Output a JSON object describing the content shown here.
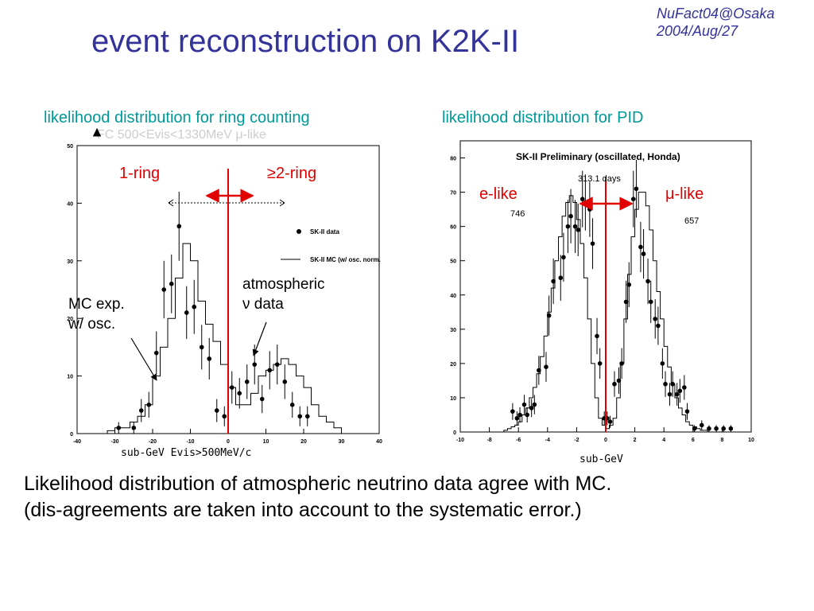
{
  "slide": {
    "title": "event reconstruction on K2K-II",
    "conference": "NuFact04@Osaka",
    "date": "2004/Aug/27"
  },
  "left_panel": {
    "heading": "likelihood distribution for ring counting",
    "faded_header": "FC 500<Evis<1330MeV μ-like",
    "one_ring_label": "1-ring",
    "multi_ring_label": "≥2-ring",
    "mc_annotation_line1": "MC exp.",
    "mc_annotation_line2": "w/ osc.",
    "data_annotation_line1": "atmospheric",
    "data_annotation_line2": "ν data",
    "caption": "sub-GeV  Evis>500MeV/c"
  },
  "right_panel": {
    "heading": "likelihood distribution for PID",
    "e_like_label": "e-like",
    "mu_like_label": "μ-like",
    "caption": "sub-GeV"
  },
  "summary": {
    "line1": "Likelihood distribution of atmospheric neutrino data agree with MC.",
    "line2": "(dis-agreements are taken into account to the systematic error.)"
  },
  "colors": {
    "title": "#333399",
    "heading": "#009999",
    "annotation_red": "#e00000",
    "cut_line": "#e00000"
  },
  "chart_data": [
    {
      "type": "scatter",
      "xlim": [
        -40,
        40
      ],
      "ylim": [
        0,
        50
      ],
      "xticks": [
        -40,
        -30,
        -20,
        -10,
        0,
        10,
        20,
        30,
        40
      ],
      "yticks": [
        0,
        10,
        20,
        30,
        40,
        50
      ],
      "cut": 0,
      "legend_position": "top-right",
      "legend": [
        "SK-II data",
        "SK-II MC (w/ osc. norm."
      ],
      "mc_histogram": {
        "bin_width": 2,
        "x_start": -32,
        "values": [
          0.5,
          1,
          1,
          2,
          3,
          5,
          10,
          15,
          20,
          27,
          33,
          30,
          23,
          19,
          16,
          12,
          8,
          5,
          5,
          7,
          10,
          11,
          12,
          13,
          12,
          10,
          8,
          5,
          3,
          2,
          1,
          0
        ]
      },
      "data_points": [
        {
          "x": -29,
          "y": 1
        },
        {
          "x": -25,
          "y": 1
        },
        {
          "x": -23,
          "y": 4
        },
        {
          "x": -21,
          "y": 5
        },
        {
          "x": -19,
          "y": 14
        },
        {
          "x": -17,
          "y": 25
        },
        {
          "x": -15,
          "y": 26
        },
        {
          "x": -13,
          "y": 36
        },
        {
          "x": -11,
          "y": 21
        },
        {
          "x": -9,
          "y": 22
        },
        {
          "x": -7,
          "y": 15
        },
        {
          "x": -5,
          "y": 13
        },
        {
          "x": -3,
          "y": 4
        },
        {
          "x": -1,
          "y": 3
        },
        {
          "x": 1,
          "y": 8
        },
        {
          "x": 3,
          "y": 7
        },
        {
          "x": 5,
          "y": 9
        },
        {
          "x": 7,
          "y": 12
        },
        {
          "x": 9,
          "y": 6
        },
        {
          "x": 11,
          "y": 11
        },
        {
          "x": 13,
          "y": 12
        },
        {
          "x": 15,
          "y": 9
        },
        {
          "x": 17,
          "y": 5
        },
        {
          "x": 19,
          "y": 3
        },
        {
          "x": 21,
          "y": 3
        }
      ]
    },
    {
      "type": "scatter",
      "title": "SK-II Preliminary (oscillated, Honda)",
      "exposure": "313.1 days",
      "left_count": "746",
      "right_count": "657",
      "xlim": [
        -10,
        10
      ],
      "ylim": [
        0,
        85
      ],
      "xticks": [
        -10,
        -8,
        -6,
        -4,
        -2,
        0,
        2,
        4,
        6,
        8,
        10
      ],
      "yticks": [
        0,
        10,
        20,
        30,
        40,
        50,
        60,
        70,
        80
      ],
      "cut": 0,
      "mc_histogram": {
        "bin_width": 0.25,
        "x_start": -7,
        "values": [
          0.5,
          1,
          1.5,
          2,
          3,
          5,
          7,
          10,
          13,
          17,
          22,
          28,
          35,
          42,
          50,
          57,
          63,
          67,
          69,
          67,
          62,
          55,
          45,
          33,
          20,
          10,
          4,
          2,
          1,
          2,
          4,
          10,
          20,
          33,
          46,
          57,
          65,
          70,
          70,
          66,
          59,
          50,
          41,
          33,
          25,
          19,
          14,
          10,
          7,
          5,
          3,
          2,
          1.5,
          1,
          0.5,
          0.5,
          0
        ]
      },
      "data_points": [
        {
          "x": -6.4,
          "y": 6
        },
        {
          "x": -6.1,
          "y": 4
        },
        {
          "x": -5.9,
          "y": 5
        },
        {
          "x": -5.6,
          "y": 8
        },
        {
          "x": -5.4,
          "y": 5
        },
        {
          "x": -5.1,
          "y": 7
        },
        {
          "x": -4.9,
          "y": 8
        },
        {
          "x": -4.6,
          "y": 18
        },
        {
          "x": -4.1,
          "y": 19
        },
        {
          "x": -3.9,
          "y": 34
        },
        {
          "x": -3.6,
          "y": 44
        },
        {
          "x": -3.1,
          "y": 45
        },
        {
          "x": -2.9,
          "y": 51
        },
        {
          "x": -2.6,
          "y": 60
        },
        {
          "x": -2.4,
          "y": 63
        },
        {
          "x": -2.1,
          "y": 60
        },
        {
          "x": -1.9,
          "y": 59
        },
        {
          "x": -1.6,
          "y": 68
        },
        {
          "x": -1.4,
          "y": 67
        },
        {
          "x": -1.1,
          "y": 65
        },
        {
          "x": -0.9,
          "y": 55
        },
        {
          "x": -0.6,
          "y": 28
        },
        {
          "x": -0.4,
          "y": 20
        },
        {
          "x": -0.1,
          "y": 4
        },
        {
          "x": 0.1,
          "y": 4
        },
        {
          "x": 0.3,
          "y": 3
        },
        {
          "x": 0.6,
          "y": 14
        },
        {
          "x": 0.9,
          "y": 15
        },
        {
          "x": 1.1,
          "y": 20
        },
        {
          "x": 1.4,
          "y": 38
        },
        {
          "x": 1.6,
          "y": 43
        },
        {
          "x": 1.9,
          "y": 68
        },
        {
          "x": 2.1,
          "y": 71
        },
        {
          "x": 2.4,
          "y": 54
        },
        {
          "x": 2.6,
          "y": 52
        },
        {
          "x": 2.9,
          "y": 44
        },
        {
          "x": 3.1,
          "y": 38
        },
        {
          "x": 3.4,
          "y": 33
        },
        {
          "x": 3.6,
          "y": 31
        },
        {
          "x": 3.9,
          "y": 20
        },
        {
          "x": 4.1,
          "y": 14
        },
        {
          "x": 4.4,
          "y": 11
        },
        {
          "x": 4.6,
          "y": 14
        },
        {
          "x": 4.9,
          "y": 11
        },
        {
          "x": 5.1,
          "y": 12
        },
        {
          "x": 5.4,
          "y": 13
        },
        {
          "x": 5.6,
          "y": 6
        },
        {
          "x": 6.1,
          "y": 1
        },
        {
          "x": 6.6,
          "y": 2
        },
        {
          "x": 7.1,
          "y": 1
        },
        {
          "x": 7.6,
          "y": 1
        },
        {
          "x": 8.1,
          "y": 1
        },
        {
          "x": 8.6,
          "y": 1
        }
      ]
    }
  ]
}
